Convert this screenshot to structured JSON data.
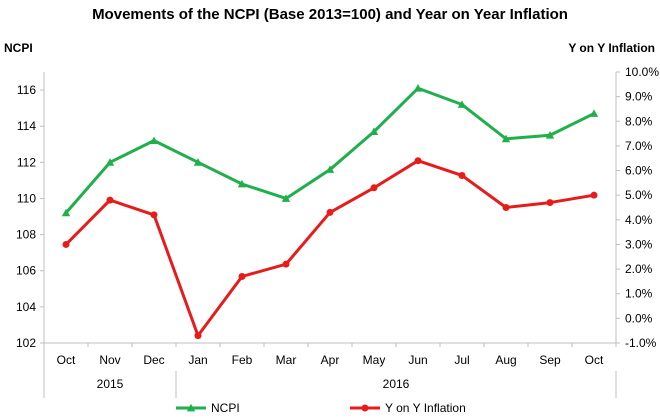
{
  "chart_data": {
    "type": "line",
    "title": "Movements of the NCPI (Base 2013=100) and Year on Year Inflation",
    "categories": [
      "Oct",
      "Nov",
      "Dec",
      "Jan",
      "Feb",
      "Mar",
      "Apr",
      "May",
      "Jun",
      "Jul",
      "Aug",
      "Sep",
      "Oct"
    ],
    "year_groups": [
      {
        "label": "2015",
        "count": 3
      },
      {
        "label": "2016",
        "count": 10
      }
    ],
    "y_left": {
      "label": "NCPI",
      "min": 102,
      "max": 117,
      "step": 2,
      "ticks": [
        "102",
        "104",
        "106",
        "108",
        "110",
        "112",
        "114",
        "116"
      ]
    },
    "y_right": {
      "label": "Y on Y Inflation",
      "min": -0.01,
      "max": 0.1,
      "step": 0.01,
      "ticks": [
        "-1.0%",
        "0.0%",
        "1.0%",
        "2.0%",
        "3.0%",
        "4.0%",
        "5.0%",
        "6.0%",
        "7.0%",
        "8.0%",
        "9.0%",
        "10.0%"
      ]
    },
    "series": [
      {
        "name": "NCPI",
        "axis": "left",
        "color": "#1fb04b",
        "marker": "triangle",
        "values": [
          109.2,
          112.0,
          113.2,
          112.0,
          110.8,
          110.0,
          111.6,
          113.7,
          116.1,
          115.2,
          113.3,
          113.5,
          114.7
        ]
      },
      {
        "name": "Y on Y Inflation",
        "axis": "right",
        "color": "#e81b1b",
        "marker": "circle",
        "values": [
          0.03,
          0.048,
          0.042,
          -0.007,
          0.017,
          0.022,
          0.043,
          0.053,
          0.064,
          0.058,
          0.045,
          0.047,
          0.05
        ]
      }
    ],
    "grid": false,
    "legend_position": "bottom"
  }
}
